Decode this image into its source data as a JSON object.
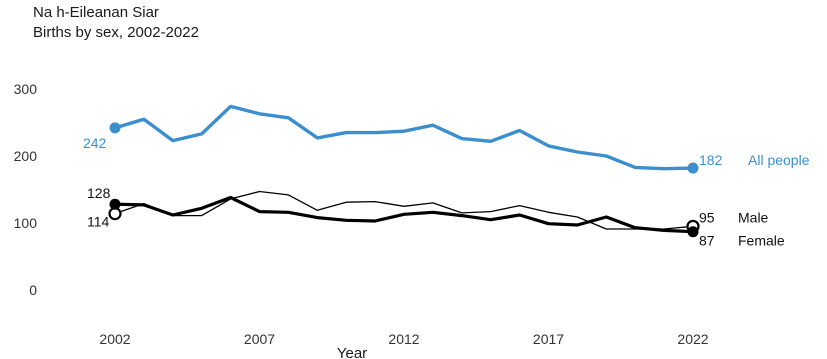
{
  "chart_data": {
    "type": "line",
    "title": "Na h-Eileanan Siar",
    "subtitle": "Births by sex, 2002-2022",
    "xlabel": "Year",
    "ylabel": "",
    "x": [
      2002,
      2003,
      2004,
      2005,
      2006,
      2007,
      2008,
      2009,
      2010,
      2011,
      2012,
      2013,
      2014,
      2015,
      2016,
      2017,
      2018,
      2019,
      2020,
      2021,
      2022
    ],
    "xticks": [
      "2002",
      "2007",
      "2012",
      "2017",
      "2022"
    ],
    "yticks": [
      "0",
      "100",
      "200",
      "300"
    ],
    "xlim": [
      2002,
      2022
    ],
    "ylim": [
      0,
      300
    ],
    "grid": false,
    "legend": "direct labels at line ends",
    "series": [
      {
        "name": "All people",
        "color": "#3b8fce",
        "style": "thick",
        "values": [
          242,
          255,
          223,
          233,
          274,
          263,
          257,
          227,
          235,
          235,
          237,
          246,
          226,
          222,
          238,
          215,
          206,
          200,
          183,
          181,
          182
        ],
        "start_label": "242",
        "end_label": "182"
      },
      {
        "name": "Male",
        "color": "#000000",
        "style": "thin",
        "values": [
          114,
          129,
          111,
          111,
          136,
          147,
          142,
          119,
          131,
          132,
          125,
          130,
          115,
          117,
          126,
          116,
          109,
          91,
          91,
          91,
          95
        ],
        "start_label": "114",
        "end_label": "95"
      },
      {
        "name": "Female",
        "color": "#000000",
        "style": "thick",
        "values": [
          128,
          127,
          112,
          122,
          138,
          117,
          116,
          108,
          104,
          103,
          113,
          116,
          111,
          105,
          112,
          99,
          97,
          109,
          93,
          89,
          87
        ],
        "start_label": "128",
        "end_label": "87"
      }
    ]
  }
}
